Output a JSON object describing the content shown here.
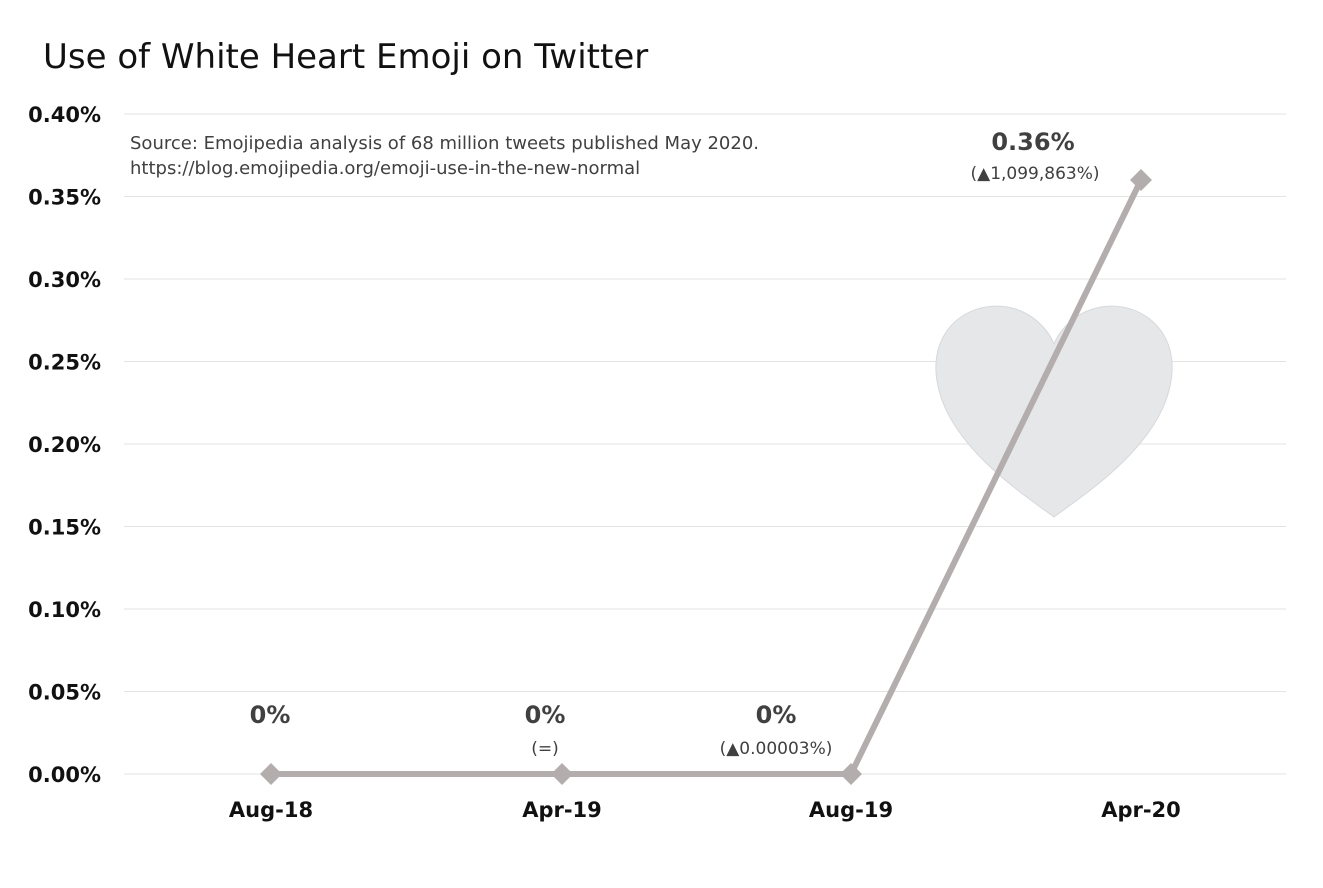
{
  "chart_data": {
    "type": "line",
    "title": "Use of White Heart Emoji on Twitter",
    "subtitle_lines": [
      "Source: Emojipedia analysis of 68 million tweets published May 2020.",
      "https://blog.emojipedia.org/emoji-use-in-the-new-normal"
    ],
    "categories": [
      "Aug-18",
      "Apr-19",
      "Aug-19",
      "Apr-20"
    ],
    "values": [
      0,
      0,
      0,
      0.36
    ],
    "value_labels": [
      "0%",
      "0%",
      "0%",
      "0.36%"
    ],
    "change_labels": [
      "",
      "(=)",
      "(▲0.00003%)",
      "(▲1,099,863%)"
    ],
    "ylim": [
      0,
      0.4
    ],
    "yticks": [
      0,
      0.05,
      0.1,
      0.15,
      0.2,
      0.25,
      0.3,
      0.35,
      0.4
    ],
    "ytick_labels": [
      "0.00%",
      "0.05%",
      "0.10%",
      "0.15%",
      "0.20%",
      "0.25%",
      "0.30%",
      "0.35%",
      "0.40%"
    ],
    "xlabel": "",
    "ylabel": "",
    "grid": true,
    "line_color": "#b3adad",
    "decoration": "white-heart-icon",
    "heart_color": "#e6e7e9"
  }
}
